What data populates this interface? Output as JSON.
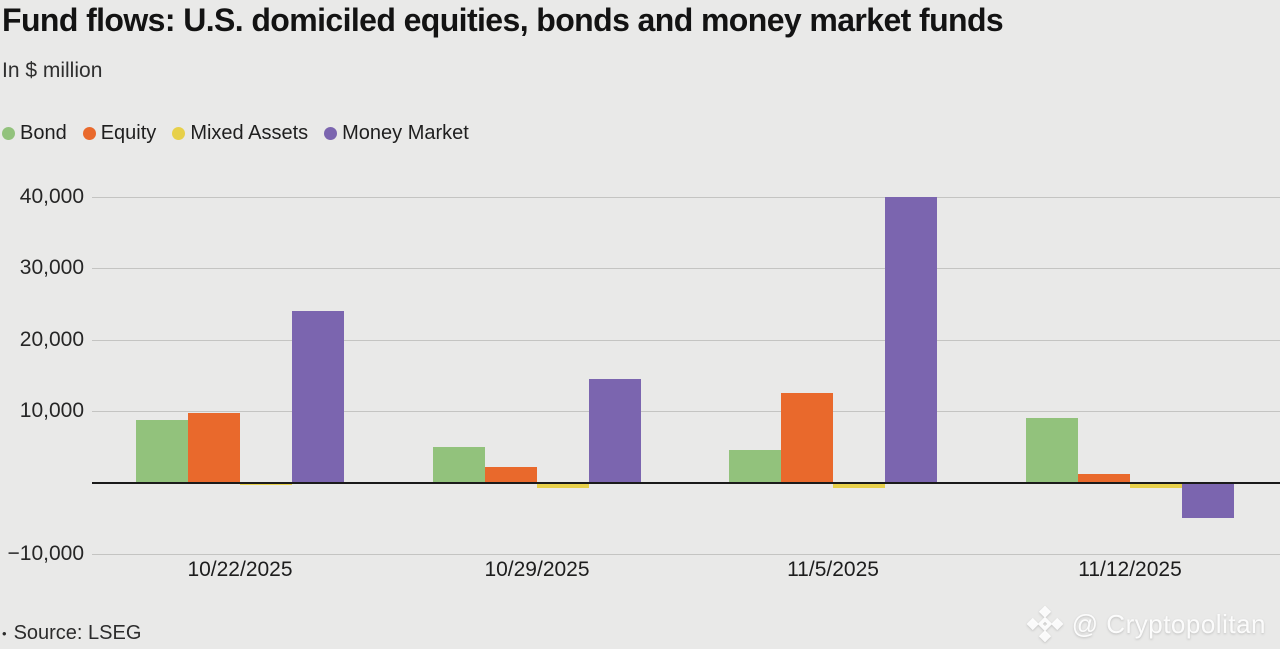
{
  "header": {
    "title": "Fund flows: U.S. domiciled equities, bonds and money market funds",
    "subtitle": "In $ million"
  },
  "footer": {
    "bullet": "•",
    "source": "Source: LSEG",
    "watermark": "@ Cryptopolitan",
    "watermark_icon": "binance-diamond-icon"
  },
  "chart_data": {
    "type": "bar",
    "title": "Fund flows: U.S. domiciled equities, bonds and money market funds",
    "unit_label": "In $ million",
    "categories": [
      "10/22/2025",
      "10/29/2025",
      "11/5/2025",
      "11/12/2025"
    ],
    "series": [
      {
        "name": "Bond",
        "color": "#92c27c",
        "values": [
          8800,
          4900,
          4500,
          9000
        ]
      },
      {
        "name": "Equity",
        "color": "#e9692c",
        "values": [
          9700,
          2200,
          12500,
          1200
        ]
      },
      {
        "name": "Mixed Assets",
        "color": "#e7d04a",
        "values": [
          -400,
          -800,
          -700,
          -700
        ]
      },
      {
        "name": "Money Market",
        "color": "#7b65af",
        "values": [
          24000,
          14500,
          40000,
          -5000
        ]
      }
    ],
    "yticks": [
      40000,
      30000,
      20000,
      10000,
      -10000
    ],
    "ylim": [
      -10000,
      42000
    ],
    "xlabel": "",
    "ylabel": "",
    "grid": true,
    "legend_position": "top-left",
    "zero_line_color": "#1a1a1a",
    "grid_color": "#c4c4c2",
    "background_color": "#e9e9e8"
  }
}
